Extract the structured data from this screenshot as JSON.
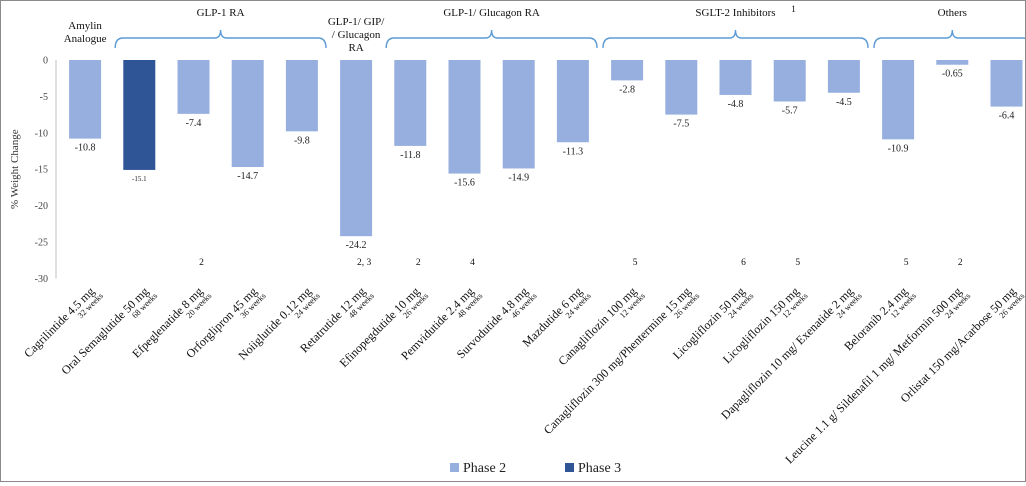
{
  "chart_data": {
    "type": "bar",
    "ylabel": "% Weight Change",
    "ylim": [
      -30,
      0
    ],
    "yticks": [
      "0",
      "-5",
      "-10",
      "-15",
      "-20",
      "-25",
      "-30"
    ],
    "grid": false,
    "legend_position": "bottom",
    "colors": {
      "phase2": "#97afdf",
      "phase3": "#2f5597",
      "bracket": "#5b9bd5"
    },
    "legend": [
      {
        "label": "Phase 2",
        "color": "#97afdf"
      },
      {
        "label": "Phase 3",
        "color": "#2f5597"
      }
    ],
    "groups": [
      {
        "label_lines": [
          "Amylin",
          "Analogue"
        ],
        "start": 0,
        "end": 0,
        "bracket": false
      },
      {
        "label_lines": [
          "GLP-1 RA"
        ],
        "start": 1,
        "end": 4,
        "bracket": true
      },
      {
        "label_lines": [
          "GLP-1/ GIP/",
          "/ Glucagon",
          "RA"
        ],
        "start": 5,
        "end": 5,
        "bracket": false
      },
      {
        "label_lines": [
          "GLP-1/ Glucagon RA"
        ],
        "start": 6,
        "end": 9,
        "bracket": true
      },
      {
        "label_lines": [
          "SGLT-2 Inhibitors"
        ],
        "sup": "1",
        "start": 10,
        "end": 14,
        "bracket": true
      },
      {
        "label_lines": [
          "Others"
        ],
        "start": 15,
        "end": 17,
        "bracket": true
      }
    ],
    "bars": [
      {
        "drug": "Cagrilintide 4.5 mg",
        "duration": "32 weeks",
        "sup": "",
        "value": -10.8,
        "value_label": "-10.8",
        "phase": "Phase 2"
      },
      {
        "drug": "Oral Semaglutide 50 mg",
        "duration": "68 weeks",
        "sup": "",
        "value": -15.1,
        "value_label": "-15.1",
        "phase": "Phase 3"
      },
      {
        "drug": "Efpeglenatide 8 mg",
        "duration": "20 weeks",
        "sup": "2",
        "value": -7.4,
        "value_label": "-7.4",
        "phase": "Phase 2"
      },
      {
        "drug": "Orforglipron 45 mg",
        "duration": "36 weeks",
        "sup": "",
        "value": -14.7,
        "value_label": "-14.7",
        "phase": "Phase 2"
      },
      {
        "drug": "Noiiglutide 0.12 mg",
        "duration": "24 weeks",
        "sup": "",
        "value": -9.8,
        "value_label": "-9.8",
        "phase": "Phase 2"
      },
      {
        "drug": "Retatrutide 12 mg",
        "duration": "48 weeks",
        "sup": "2, 3",
        "value": -24.2,
        "value_label": "-24.2",
        "phase": "Phase 2"
      },
      {
        "drug": "Efinopegdutide 10 mg",
        "duration": "26 weeks",
        "sup": "2",
        "value": -11.8,
        "value_label": "-11.8",
        "phase": "Phase 2"
      },
      {
        "drug": "Pemvidutide 2.4 mg",
        "duration": "48 weeks",
        "sup": "4",
        "value": -15.6,
        "value_label": "-15.6",
        "phase": "Phase 2"
      },
      {
        "drug": "Survodutide 4.8 mg",
        "duration": "46 weeks",
        "sup": "",
        "value": -14.9,
        "value_label": "-14.9",
        "phase": "Phase 2"
      },
      {
        "drug": "Mazdutide 6 mg",
        "duration": "24 weeks",
        "sup": "",
        "value": -11.3,
        "value_label": "-11.3",
        "phase": "Phase 2"
      },
      {
        "drug": "Canagliflozin 100 mg",
        "duration": "12 weeks",
        "sup": "5",
        "value": -2.8,
        "value_label": "-2.8",
        "phase": "Phase 2"
      },
      {
        "drug": "Canagliflozin 300 mg/Phentermine 15 mg",
        "duration": "26 weeks",
        "sup": "",
        "value": -7.5,
        "value_label": "-7.5",
        "phase": "Phase 2"
      },
      {
        "drug": "Licogliflozin 50 mg",
        "duration": "24 weeks",
        "sup": "6",
        "value": -4.8,
        "value_label": "-4.8",
        "phase": "Phase 2"
      },
      {
        "drug": "Licogliflozin 150 mg",
        "duration": "12 weeks",
        "sup": "5",
        "value": -5.7,
        "value_label": "-5.7",
        "phase": "Phase 2"
      },
      {
        "drug": "Dapagliflozin 10 mg/ Exenatide 2 mg",
        "duration": "24 weeks",
        "sup": "",
        "value": -4.5,
        "value_label": "-4.5",
        "phase": "Phase 2"
      },
      {
        "drug": "Beloranib 2.4 mg",
        "duration": "12 weeks",
        "sup": "5",
        "value": -10.9,
        "value_label": "-10.9",
        "phase": "Phase 2"
      },
      {
        "drug": "Leucine 1.1 g/ Sildenafil 1 mg/ Metformin 500 mg",
        "duration": "24 weeks",
        "sup": "2",
        "value": -0.65,
        "value_label": "-0.65",
        "phase": "Phase 2"
      },
      {
        "drug": "Orlistat 150 mg/Acarbose 50 mg",
        "duration": "26 weeks",
        "sup": "",
        "value": -6.4,
        "value_label": "-6.4",
        "phase": "Phase 2"
      }
    ]
  }
}
